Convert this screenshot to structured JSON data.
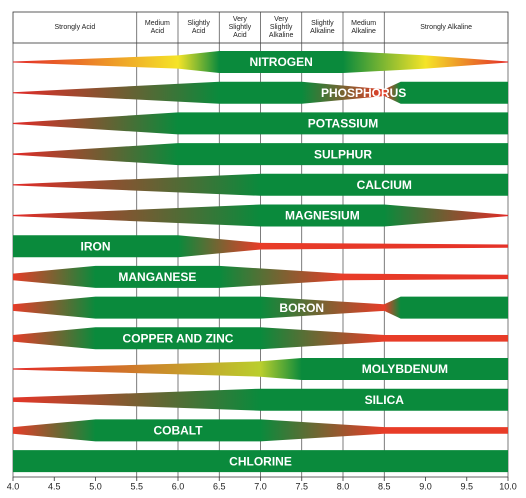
{
  "chart_data": {
    "type": "band",
    "xlim": [
      4,
      10
    ],
    "xticks": [
      {
        "value": 4,
        "label": "4.0"
      },
      {
        "value": 4.5,
        "label": "4.5"
      },
      {
        "value": 5,
        "label": "5.0"
      },
      {
        "value": 5.5,
        "label": "5.5"
      },
      {
        "value": 6,
        "label": "6.0"
      },
      {
        "value": 6.5,
        "label": "6.5"
      },
      {
        "value": 7,
        "label": "7.0"
      },
      {
        "value": 7.5,
        "label": "7.5"
      },
      {
        "value": 8,
        "label": "8.0"
      },
      {
        "value": 8.5,
        "label": "8.5"
      },
      {
        "value": 9,
        "label": "9.0"
      },
      {
        "value": 9.5,
        "label": "9.5"
      },
      {
        "value": 10,
        "label": "10.0"
      }
    ],
    "zones": [
      {
        "label": "Strongly Acid",
        "from": 4,
        "to": 5.5
      },
      {
        "label": "Medium Acid",
        "from": 5.5,
        "to": 6
      },
      {
        "label": "Slightly Acid",
        "from": 6,
        "to": 6.5
      },
      {
        "label": "Very Slightly Acid",
        "from": 6.5,
        "to": 7
      },
      {
        "label": "Very Slightly Alkaline",
        "from": 7,
        "to": 7.5
      },
      {
        "label": "Slightly Alkaline",
        "from": 7.5,
        "to": 8
      },
      {
        "label": "Medium Alkaline",
        "from": 8,
        "to": 8.5
      },
      {
        "label": "Strongly Alkaline",
        "from": 8.5,
        "to": 10
      }
    ],
    "series": [
      {
        "name": "NITROGEN",
        "x": [
          4,
          6,
          6.5,
          8,
          9,
          10
        ],
        "values": [
          0.05,
          0.6,
          1,
          1,
          0.6,
          0.05
        ]
      },
      {
        "name": "PHOSPHORUS",
        "x": [
          4,
          6.5,
          7.5,
          8.5,
          8.7,
          10
        ],
        "values": [
          0.05,
          1,
          1,
          0.3,
          1,
          1
        ]
      },
      {
        "name": "POTASSIUM",
        "x": [
          4,
          6,
          10
        ],
        "values": [
          0.05,
          1,
          1
        ]
      },
      {
        "name": "SULPHUR",
        "x": [
          4,
          6,
          10
        ],
        "values": [
          0.05,
          1,
          1
        ]
      },
      {
        "name": "CALCIUM",
        "x": [
          4,
          7,
          8.5,
          10
        ],
        "values": [
          0.05,
          1,
          1,
          1
        ]
      },
      {
        "name": "MAGNESIUM",
        "x": [
          4,
          7,
          8.5,
          10
        ],
        "values": [
          0.05,
          1,
          1,
          0.05
        ]
      },
      {
        "name": "IRON",
        "x": [
          4,
          6,
          7,
          10
        ],
        "values": [
          1,
          1,
          0.3,
          0.15
        ]
      },
      {
        "name": "MANGANESE",
        "x": [
          4,
          5,
          6.5,
          8,
          10
        ],
        "values": [
          0.3,
          1,
          1,
          0.3,
          0.2
        ]
      },
      {
        "name": "BORON",
        "x": [
          4,
          5,
          7,
          8.5,
          8.7,
          10
        ],
        "values": [
          0.3,
          1,
          1,
          0.3,
          1,
          1
        ]
      },
      {
        "name": "COPPER AND ZINC",
        "x": [
          4,
          5,
          7,
          8.5,
          10
        ],
        "values": [
          0.3,
          1,
          1,
          0.3,
          0.3
        ]
      },
      {
        "name": "MOLYBDENUM",
        "x": [
          4,
          7,
          7.5,
          10
        ],
        "values": [
          0.05,
          0.7,
          1,
          1
        ]
      },
      {
        "name": "SILICA",
        "x": [
          4,
          7,
          10
        ],
        "values": [
          0.2,
          1,
          1
        ]
      },
      {
        "name": "COBALT",
        "x": [
          4,
          5,
          7,
          8.5,
          10
        ],
        "values": [
          0.3,
          1,
          1,
          0.3,
          0.3
        ]
      },
      {
        "name": "CHLORINE",
        "x": [
          4,
          10
        ],
        "values": [
          1,
          1
        ]
      }
    ]
  }
}
